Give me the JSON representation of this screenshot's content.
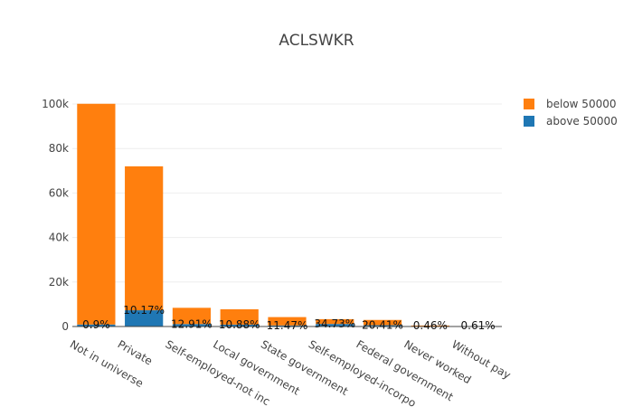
{
  "chart_data": {
    "type": "bar",
    "barmode": "stack",
    "title": "ACLSWKR",
    "xlabel": "",
    "ylabel": "",
    "ylim": [
      0,
      100000
    ],
    "yticks": [
      0,
      20000,
      40000,
      60000,
      80000,
      100000
    ],
    "ytick_labels": [
      "0",
      "20k",
      "40k",
      "60k",
      "80k",
      "100k"
    ],
    "grid": true,
    "legend_position": "top-right",
    "categories": [
      "Not in universe",
      "Private",
      "Self-employed-not incorporated",
      "Local government",
      "State government",
      "Self-employed-incorporated",
      "Federal government",
      "Never worked",
      "Without pay"
    ],
    "category_tick_labels": [
      "Not in universe",
      "Private",
      "Self-employed-not inc",
      "Local government",
      "State government",
      "Self-employed-incorpo",
      "Federal government",
      "Never worked",
      "Without pay"
    ],
    "series": [
      {
        "name": "above 50000",
        "color": "#1f77b4",
        "values": [
          900,
          7300,
          1100,
          850,
          480,
          1150,
          600,
          2,
          1
        ]
      },
      {
        "name": "below 50000",
        "color": "#ff7f0e",
        "values": [
          99200,
          64700,
          7300,
          6900,
          3750,
          2150,
          2350,
          440,
          164
        ]
      }
    ],
    "legend_order": [
      "below 50000",
      "above 50000"
    ],
    "percent_labels": [
      "0.9%",
      "10.17%",
      "12.91%",
      "10.88%",
      "11.47%",
      "34.73%",
      "20.41%",
      "0.46%",
      "0.61%"
    ]
  }
}
